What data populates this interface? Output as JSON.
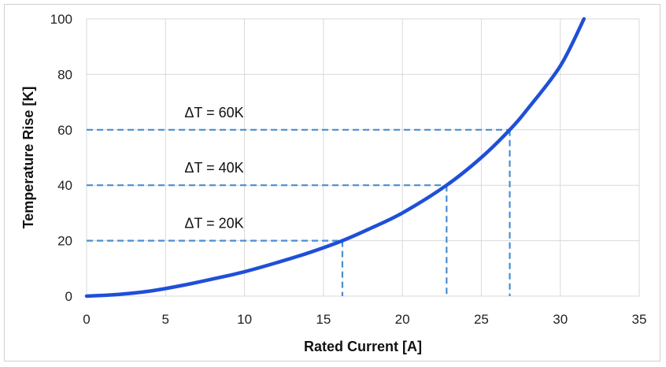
{
  "chart_data": {
    "type": "line",
    "title": "",
    "xlabel": "Rated Current [A]",
    "ylabel": "Temperature Rise  [K]",
    "xlim": [
      0,
      35
    ],
    "ylim": [
      0,
      100
    ],
    "xticks": [
      0,
      5,
      10,
      15,
      20,
      25,
      30,
      35
    ],
    "yticks": [
      0,
      20,
      40,
      60,
      80,
      100
    ],
    "grid": true,
    "series": [
      {
        "color": "#1f4fd8",
        "x": [
          0,
          2,
          4,
          6,
          8,
          10,
          12,
          14,
          16.2,
          18,
          20,
          22.8,
          25,
          26.8,
          28,
          30,
          31.5
        ],
        "y": [
          0,
          0.6,
          1.8,
          3.8,
          6.2,
          8.8,
          12.0,
          15.5,
          20,
          24.5,
          30,
          40,
          50,
          60,
          68,
          83,
          100
        ]
      }
    ],
    "reference_lines": [
      {
        "label": "ΔT = 20K",
        "x": 16.2,
        "y": 20
      },
      {
        "label": "ΔT = 40K",
        "x": 22.8,
        "y": 40
      },
      {
        "label": "ΔT = 60K",
        "x": 26.8,
        "y": 60
      }
    ],
    "reference_color": "#4a8ed0"
  }
}
